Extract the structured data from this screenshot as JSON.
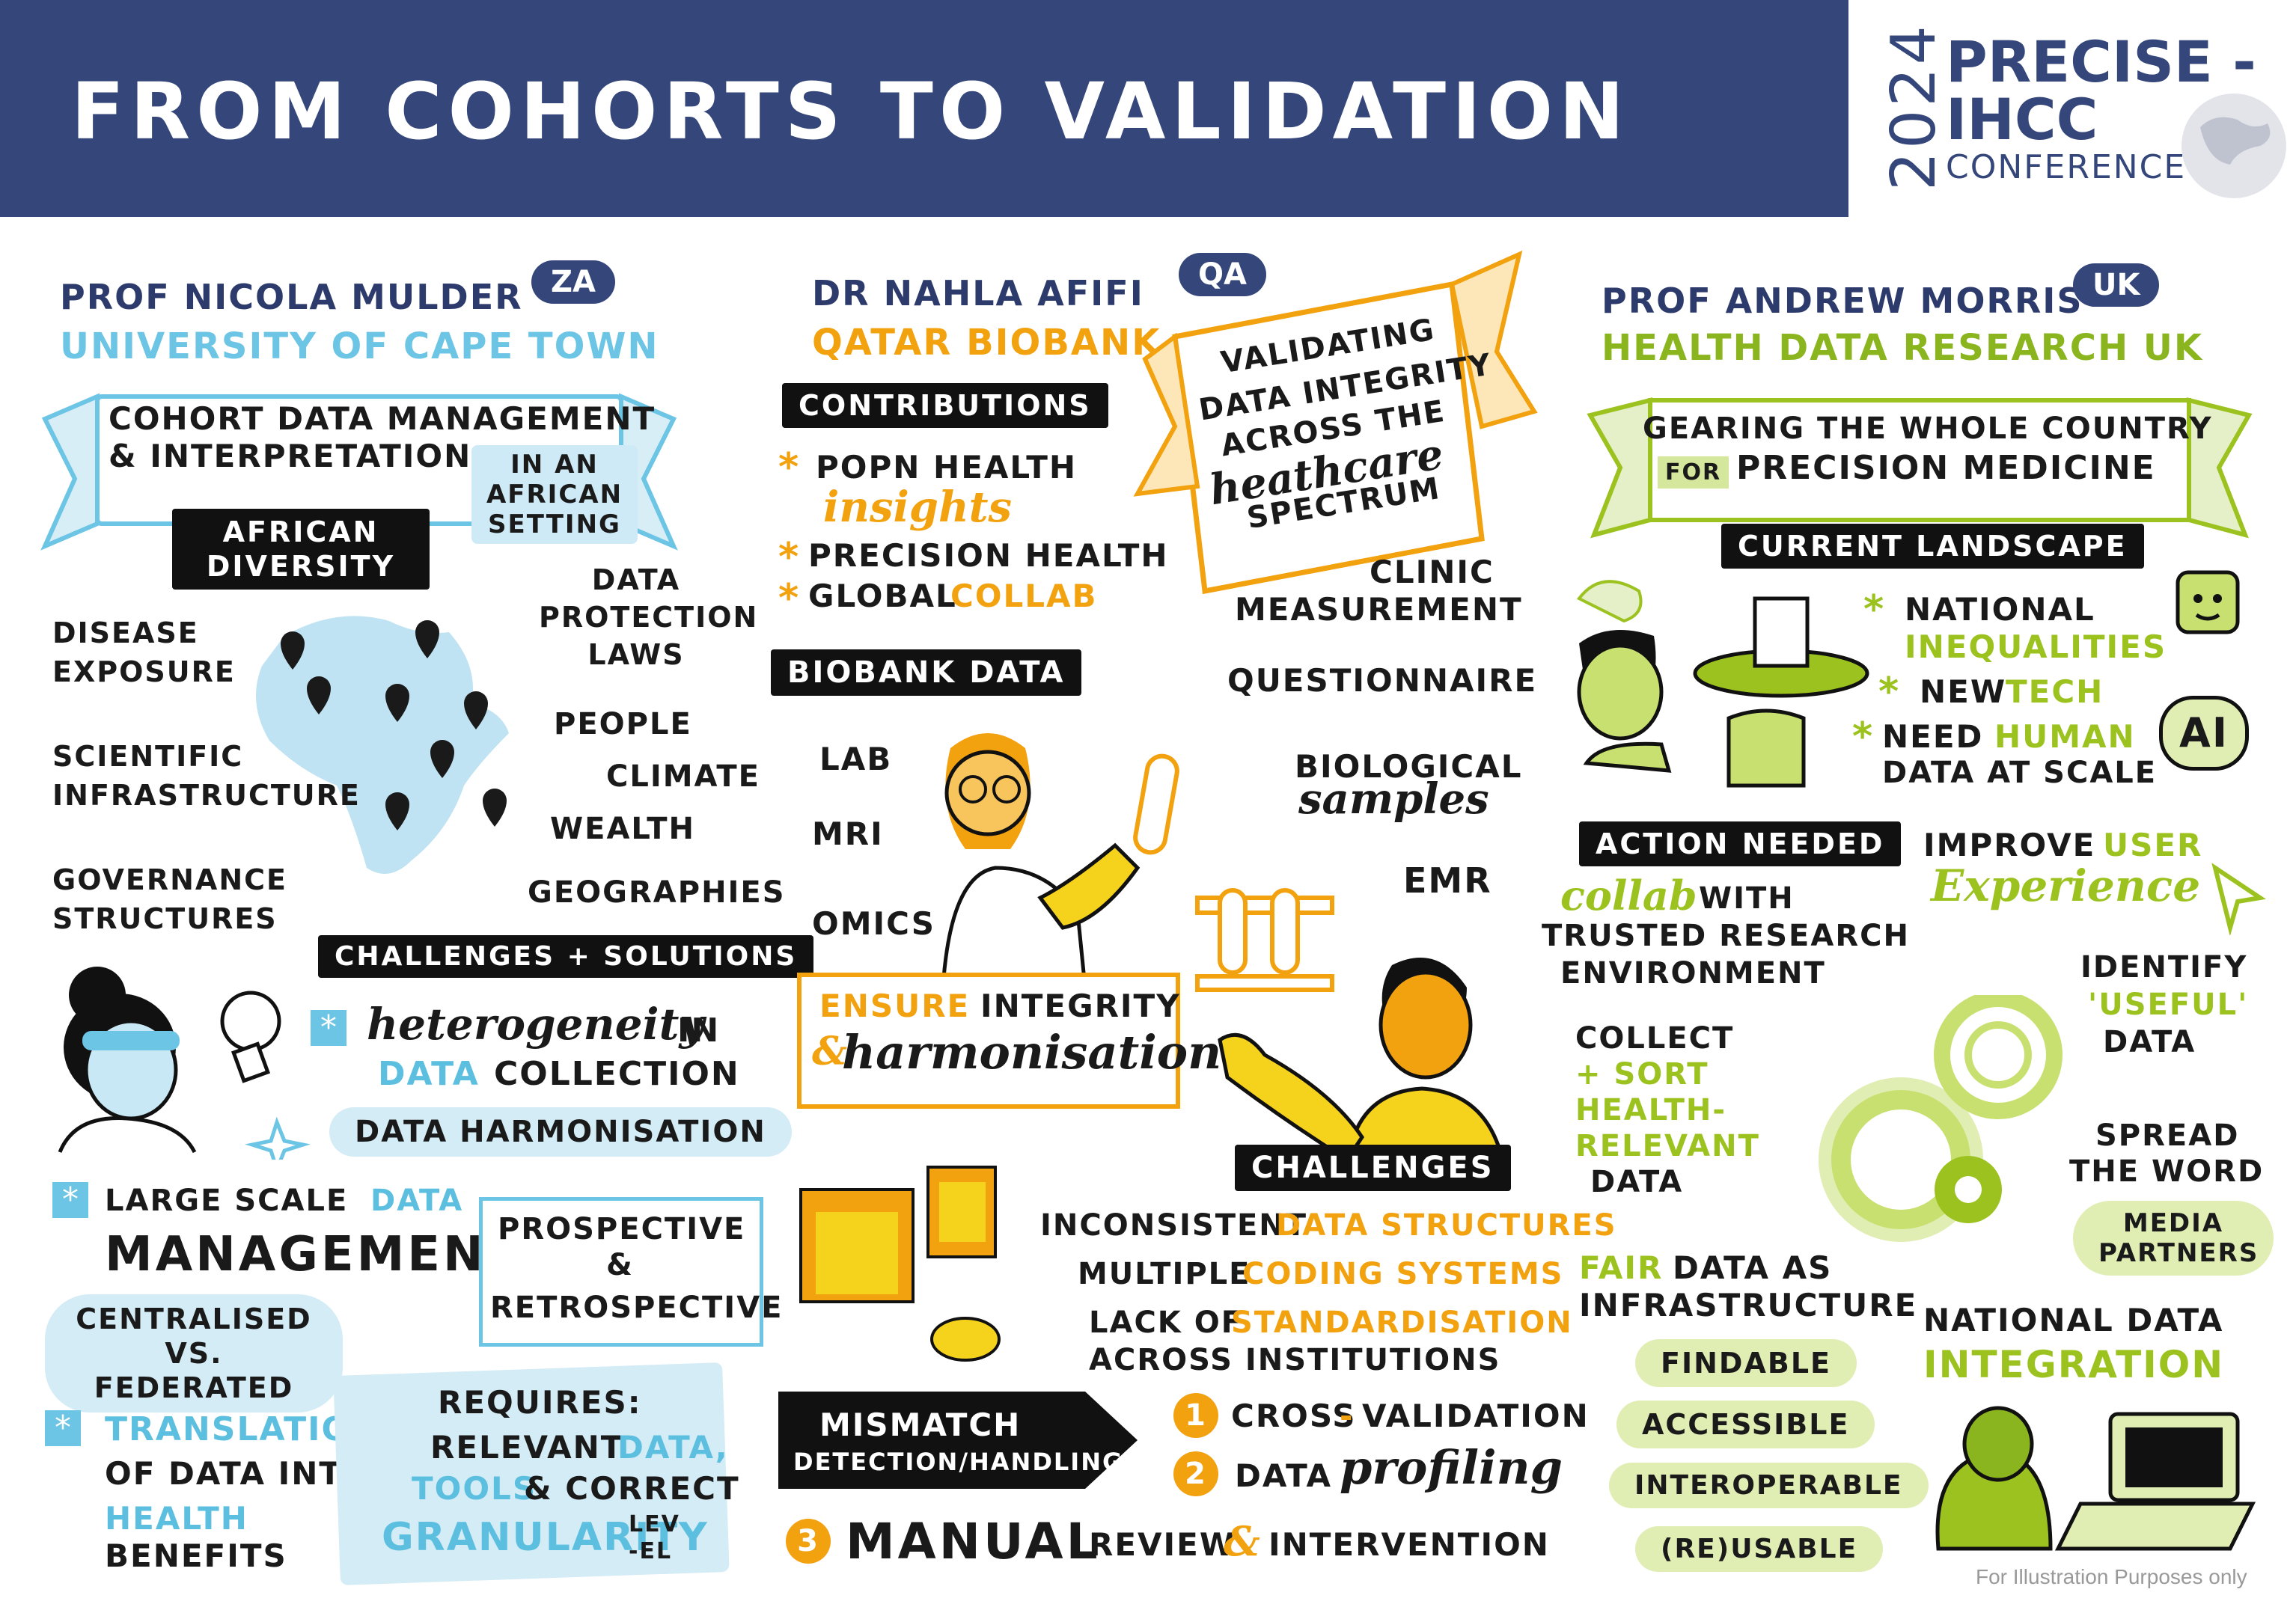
{
  "header": {
    "title": "FROM COHORTS TO VALIDATION",
    "logo_year": "2024",
    "logo_line1": "PRECISE -",
    "logo_line2": "IHCC",
    "logo_line3": "CONFERENCE"
  },
  "left": {
    "speaker": "PROF NICOLA MULDER",
    "country": "ZA",
    "institution": "UNIVERSITY OF CAPE TOWN",
    "banner_line1": "COHORT DATA MANAGEMENT",
    "banner_line2": "& INTERPRETATION",
    "banner_sub": "IN AN AFRICAN SETTING",
    "diversity_label": "AFRICAN DIVERSITY",
    "map_labels": {
      "disease": "DISEASE EXPOSURE",
      "scientific": "SCIENTIFIC INFRASTRUCTURE",
      "governance": "GOVERNANCE STRUCTURES",
      "data_protection": "DATA PROTECTION LAWS",
      "people": "PEOPLE",
      "climate": "CLIMATE",
      "wealth": "WEALTH",
      "geographies": "GEOGRAPHIES"
    },
    "challenges_label": "CHALLENGES + SOLUTIONS",
    "heterogeneity_script": "heterogeneity",
    "heterogeneity_in": "IN",
    "data_word": "DATA",
    "collection_word": "COLLECTION",
    "harmonisation_pill": "DATA HARMONISATION",
    "large_scale": "LARGE SCALE",
    "large_scale_data": "DATA",
    "management": "MANAGEMENT",
    "centralised": "CENTRALISED VS. FEDERATED",
    "prospective": "PROSPECTIVE",
    "amp": "&",
    "retrospective": "RETROSPECTIVE",
    "translation": "TRANSLATION",
    "of_data_into": "OF DATA INTO",
    "health": "HEALTH",
    "benefits": "BENEFITS",
    "requires": "REQUIRES:",
    "relevant": "RELEVANT",
    "req_data": "DATA,",
    "tools": "TOOLS",
    "correct": "& CORRECT",
    "granularity": "GRANULARITY",
    "level": "LEV -EL"
  },
  "middle": {
    "speaker": "DR NAHLA AFIFI",
    "country": "QA",
    "institution": "QATAR BIOBANK",
    "contributions_label": "CONTRIBUTIONS",
    "contrib1": "POPN HEALTH",
    "contrib1_script": "insights",
    "contrib2": "PRECISION HEALTH",
    "contrib3a": "GLOBAL",
    "contrib3b": "COLLAB",
    "banner_line1": "VALIDATING",
    "banner_line2": "DATA INTEGRITY",
    "banner_line3": "ACROSS THE",
    "banner_script": "heathcare",
    "banner_line4": "SPECTRUM",
    "biobank_label": "BIOBANK DATA",
    "lab": "LAB",
    "mri": "MRI",
    "omics": "OMICS",
    "clinic1": "CLINIC",
    "clinic2": "MEASUREMENT",
    "questionnaire": "QUESTIONNAIRE",
    "biological": "BIOLOGICAL",
    "samples_script": "samples",
    "emr": "EMR",
    "ensure": "ENSURE",
    "integrity": "INTEGRITY",
    "amp": "&",
    "harmonisation_script": "harmonisation",
    "challenges_label": "CHALLENGES",
    "ch1a": "INCONSISTENT",
    "ch1b": "DATA STRUCTURES",
    "ch2a": "MULTIPLE",
    "ch2b": "CODING SYSTEMS",
    "ch3a": "LACK OF",
    "ch3b": "STANDARDISATION",
    "ch3c": "ACROSS INSTITUTIONS",
    "mismatch1": "MISMATCH",
    "mismatch2": "DETECTION/HANDLING",
    "step1_num": "1",
    "step1a": "CROSS",
    "step1b": "-",
    "step1c": "VALIDATION",
    "step2_num": "2",
    "step2a": "DATA",
    "step2_script": "profiling",
    "step3_num": "3",
    "step3a": "MANUAL",
    "step3b": "REVIEW",
    "step3amp": "&",
    "step3c": "INTERVENTION"
  },
  "right": {
    "speaker": "PROF ANDREW MORRIS",
    "country": "UK",
    "institution": "HEALTH DATA RESEARCH UK",
    "banner_line1": "GEARING THE WHOLE COUNTRY",
    "banner_for": "FOR",
    "banner_line2": "PRECISION MEDICINE",
    "landscape_label": "CURRENT LANDSCAPE",
    "national": "NATIONAL",
    "inequalities": "INEQUALITIES",
    "new": "NEW",
    "tech": "TECH",
    "need": "NEED",
    "human": "HUMAN",
    "data_at_scale": "DATA AT SCALE",
    "ai": "AI",
    "action_label": "ACTION NEEDED",
    "collab_script": "collab",
    "with": "WITH",
    "trusted1": "TRUSTED RESEARCH",
    "trusted2": "ENVIRONMENT",
    "improve": "IMPROVE",
    "user": "USER",
    "experience_script": "Experience",
    "identify": "IDENTIFY",
    "useful": "'USEFUL'",
    "useful_data": "DATA",
    "collect1": "COLLECT",
    "collect2": "+ SORT",
    "collect3": "HEALTH-",
    "collect4": "RELEVANT",
    "collect5": "DATA",
    "spread1": "SPREAD",
    "spread2": "THE WORD",
    "media": "MEDIA PARTNERS",
    "fair": "FAIR",
    "fair_rest": "DATA AS",
    "infrastructure": "INFRASTRUCTURE",
    "findable": "FINDABLE",
    "accessible": "ACCESSIBLE",
    "interoperable": "INTEROPERABLE",
    "reusable": "(RE)USABLE",
    "national_data": "NATIONAL DATA",
    "integration": "INTEGRATION"
  },
  "footer_note": "For Illustration Purposes only",
  "colors": {
    "navy": "#34467a",
    "blue": "#6cc5e4",
    "orange": "#f2a10f",
    "green": "#9cc21f",
    "yellow": "#f5d21c"
  }
}
